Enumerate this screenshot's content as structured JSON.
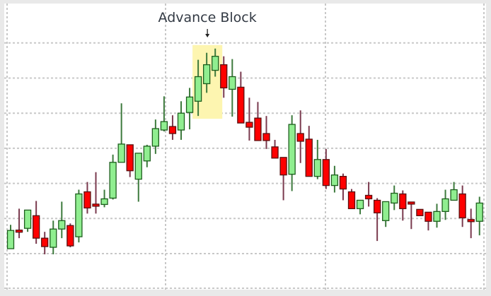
{
  "chart_data": {
    "type": "candlestick",
    "title": "",
    "xlabel": "",
    "ylabel": "",
    "ylim": [
      -10,
      70
    ],
    "grid": true,
    "y_grid_values": [
      0,
      10,
      20,
      30,
      40,
      50,
      60
    ],
    "candle_fields": [
      "open",
      "high",
      "low",
      "close"
    ],
    "candles": [
      [
        1.4,
        8.2,
        1.4,
        6.6
      ],
      [
        6.4,
        12.8,
        4.4,
        6.2
      ],
      [
        7.2,
        12.4,
        6.2,
        12.4
      ],
      [
        10.8,
        15,
        2.8,
        4.4
      ],
      [
        4.4,
        6.2,
        -0.2,
        2
      ],
      [
        1.8,
        9.4,
        -0.2,
        7
      ],
      [
        7,
        14.8,
        4.4,
        9.4
      ],
      [
        8,
        8.6,
        1.8,
        2.2
      ],
      [
        4.8,
        18.2,
        3.2,
        17
      ],
      [
        17.6,
        20.4,
        11.4,
        13
      ],
      [
        13.8,
        23.2,
        11.4,
        13.6
      ],
      [
        14,
        18.2,
        13.2,
        15.6
      ],
      [
        15.8,
        28.2,
        15.4,
        26
      ],
      [
        26,
        42.8,
        26,
        31.2
      ],
      [
        31,
        31,
        21.8,
        23.6
      ],
      [
        21.2,
        28.6,
        14.8,
        28.6
      ],
      [
        26.4,
        31,
        24.6,
        30.6
      ],
      [
        30.6,
        38.2,
        28.4,
        35.6
      ],
      [
        35.2,
        44.8,
        34.8,
        37.6
      ],
      [
        36.2,
        39.4,
        32.4,
        34.2
      ],
      [
        35.2,
        43.4,
        32.4,
        40
      ],
      [
        40.2,
        47.2,
        35.4,
        44.6
      ],
      [
        43.4,
        55.2,
        39.2,
        50.4
      ],
      [
        48.4,
        57.2,
        45.8,
        53.8
      ],
      [
        52.2,
        58.4,
        50.4,
        56.2
      ],
      [
        53.8,
        56.2,
        44.4,
        47.2
      ],
      [
        46.8,
        55.4,
        39,
        50.4
      ],
      [
        47.4,
        51.8,
        37.2,
        37.2
      ],
      [
        37.4,
        44.4,
        32.2,
        36
      ],
      [
        38.6,
        43.2,
        32.2,
        32.2
      ],
      [
        34.2,
        39.2,
        29.8,
        32.2
      ],
      [
        30.4,
        32.4,
        27.2,
        27.2
      ],
      [
        27.4,
        27.4,
        15.2,
        22.4
      ],
      [
        22.6,
        39.4,
        17.8,
        36.8
      ],
      [
        34.2,
        40.8,
        25.8,
        32
      ],
      [
        32.6,
        36.4,
        22,
        22
      ],
      [
        22,
        32.4,
        21.2,
        26.8
      ],
      [
        26.8,
        29.8,
        18.4,
        19.4
      ],
      [
        19.4,
        25,
        17.4,
        22.4
      ],
      [
        22,
        22.8,
        15.2,
        18.4
      ],
      [
        17.6,
        18.4,
        12.8,
        12.8
      ],
      [
        12.8,
        15.2,
        11.2,
        15.2
      ],
      [
        16.6,
        20.4,
        13.4,
        15.6
      ],
      [
        15.2,
        15.8,
        3.6,
        11.6
      ],
      [
        9.4,
        14.8,
        7.6,
        14.8
      ],
      [
        14.4,
        19.4,
        12.4,
        17.2
      ],
      [
        17,
        18,
        9.4,
        12.8
      ],
      [
        14.4,
        14.4,
        7,
        14.3
      ],
      [
        12.6,
        12.6,
        10.8,
        10.8
      ],
      [
        11.8,
        11.8,
        6.6,
        9.2
      ],
      [
        9.2,
        14.2,
        7.4,
        12
      ],
      [
        12,
        18.2,
        9.6,
        15.6
      ],
      [
        15.2,
        20.4,
        15.2,
        18.2
      ],
      [
        17,
        19.4,
        7.6,
        10.2
      ],
      [
        9.4,
        12.8,
        4.4,
        9.2
      ],
      [
        9.2,
        16.2,
        5.2,
        14.4
      ]
    ],
    "annotations": [
      {
        "label": "Advance Block",
        "candle_range": [
          22,
          24
        ],
        "highlight_color": "#fdf5b0",
        "arrow": "down"
      }
    ],
    "colors": {
      "up_body": "#90ee90",
      "up_outline": "#1d5e1d",
      "up_wick": "#3d7a3d",
      "down_body": "#ff0000",
      "down_outline": "#5a1010",
      "down_wick": "#7a3a4e",
      "grid": "#c8c8c8",
      "plot_bg": "#ffffff",
      "frame_bg": "#e9e9e9"
    }
  }
}
